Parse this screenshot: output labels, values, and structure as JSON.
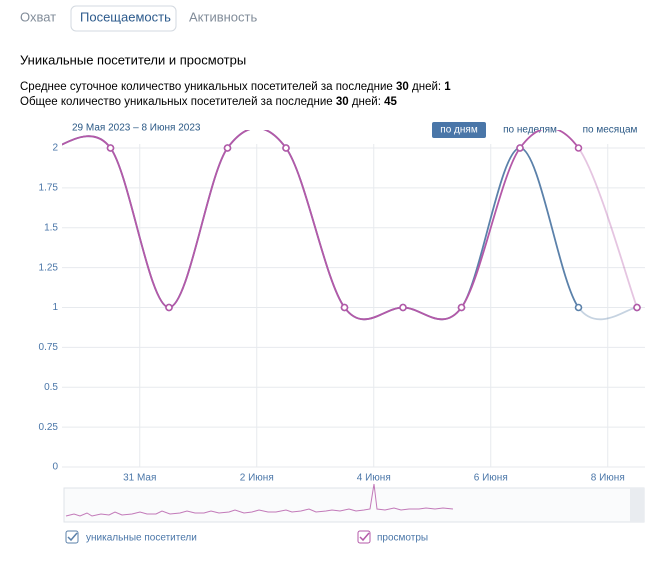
{
  "tabs": [
    "Охват",
    "Посещаемость",
    "Активность"
  ],
  "heading": "Уникальные посетители и просмотры",
  "stats": [
    {
      "prefix": "Среднее суточное количество уникальных посетителей за последние",
      "days": "30",
      "mid": "дней:",
      "value": "1"
    },
    {
      "prefix": "Общее количество уникальных посетителей за последние",
      "days": "30",
      "mid": "дней:",
      "value": "45"
    }
  ],
  "period_buttons": [
    "по дням",
    "по неделям",
    "по месяцам"
  ],
  "chart_data": {
    "type": "line",
    "subtitle": "29 Мая 2023 – 8 Июня 2023",
    "categories": [
      null,
      null,
      "31 Мая",
      null,
      "2 Июня",
      null,
      "4 Июня",
      null,
      "6 Июня",
      null,
      "8 Июня"
    ],
    "series": [
      {
        "name": "уникальные посетители",
        "color": "#5b81aa",
        "values": [
          2,
          2,
          1,
          2,
          2,
          1,
          1,
          1,
          2,
          1,
          1
        ]
      },
      {
        "name": "просмотры",
        "color": "#b459a8",
        "values": [
          2,
          2,
          1,
          2,
          2,
          1,
          1,
          1,
          2,
          2,
          1
        ]
      }
    ],
    "ylim": [
      0,
      2
    ],
    "yticks": [
      0,
      0.25,
      0.5,
      0.75,
      1,
      1.25,
      1.5,
      1.75,
      2
    ],
    "grid": true
  }
}
